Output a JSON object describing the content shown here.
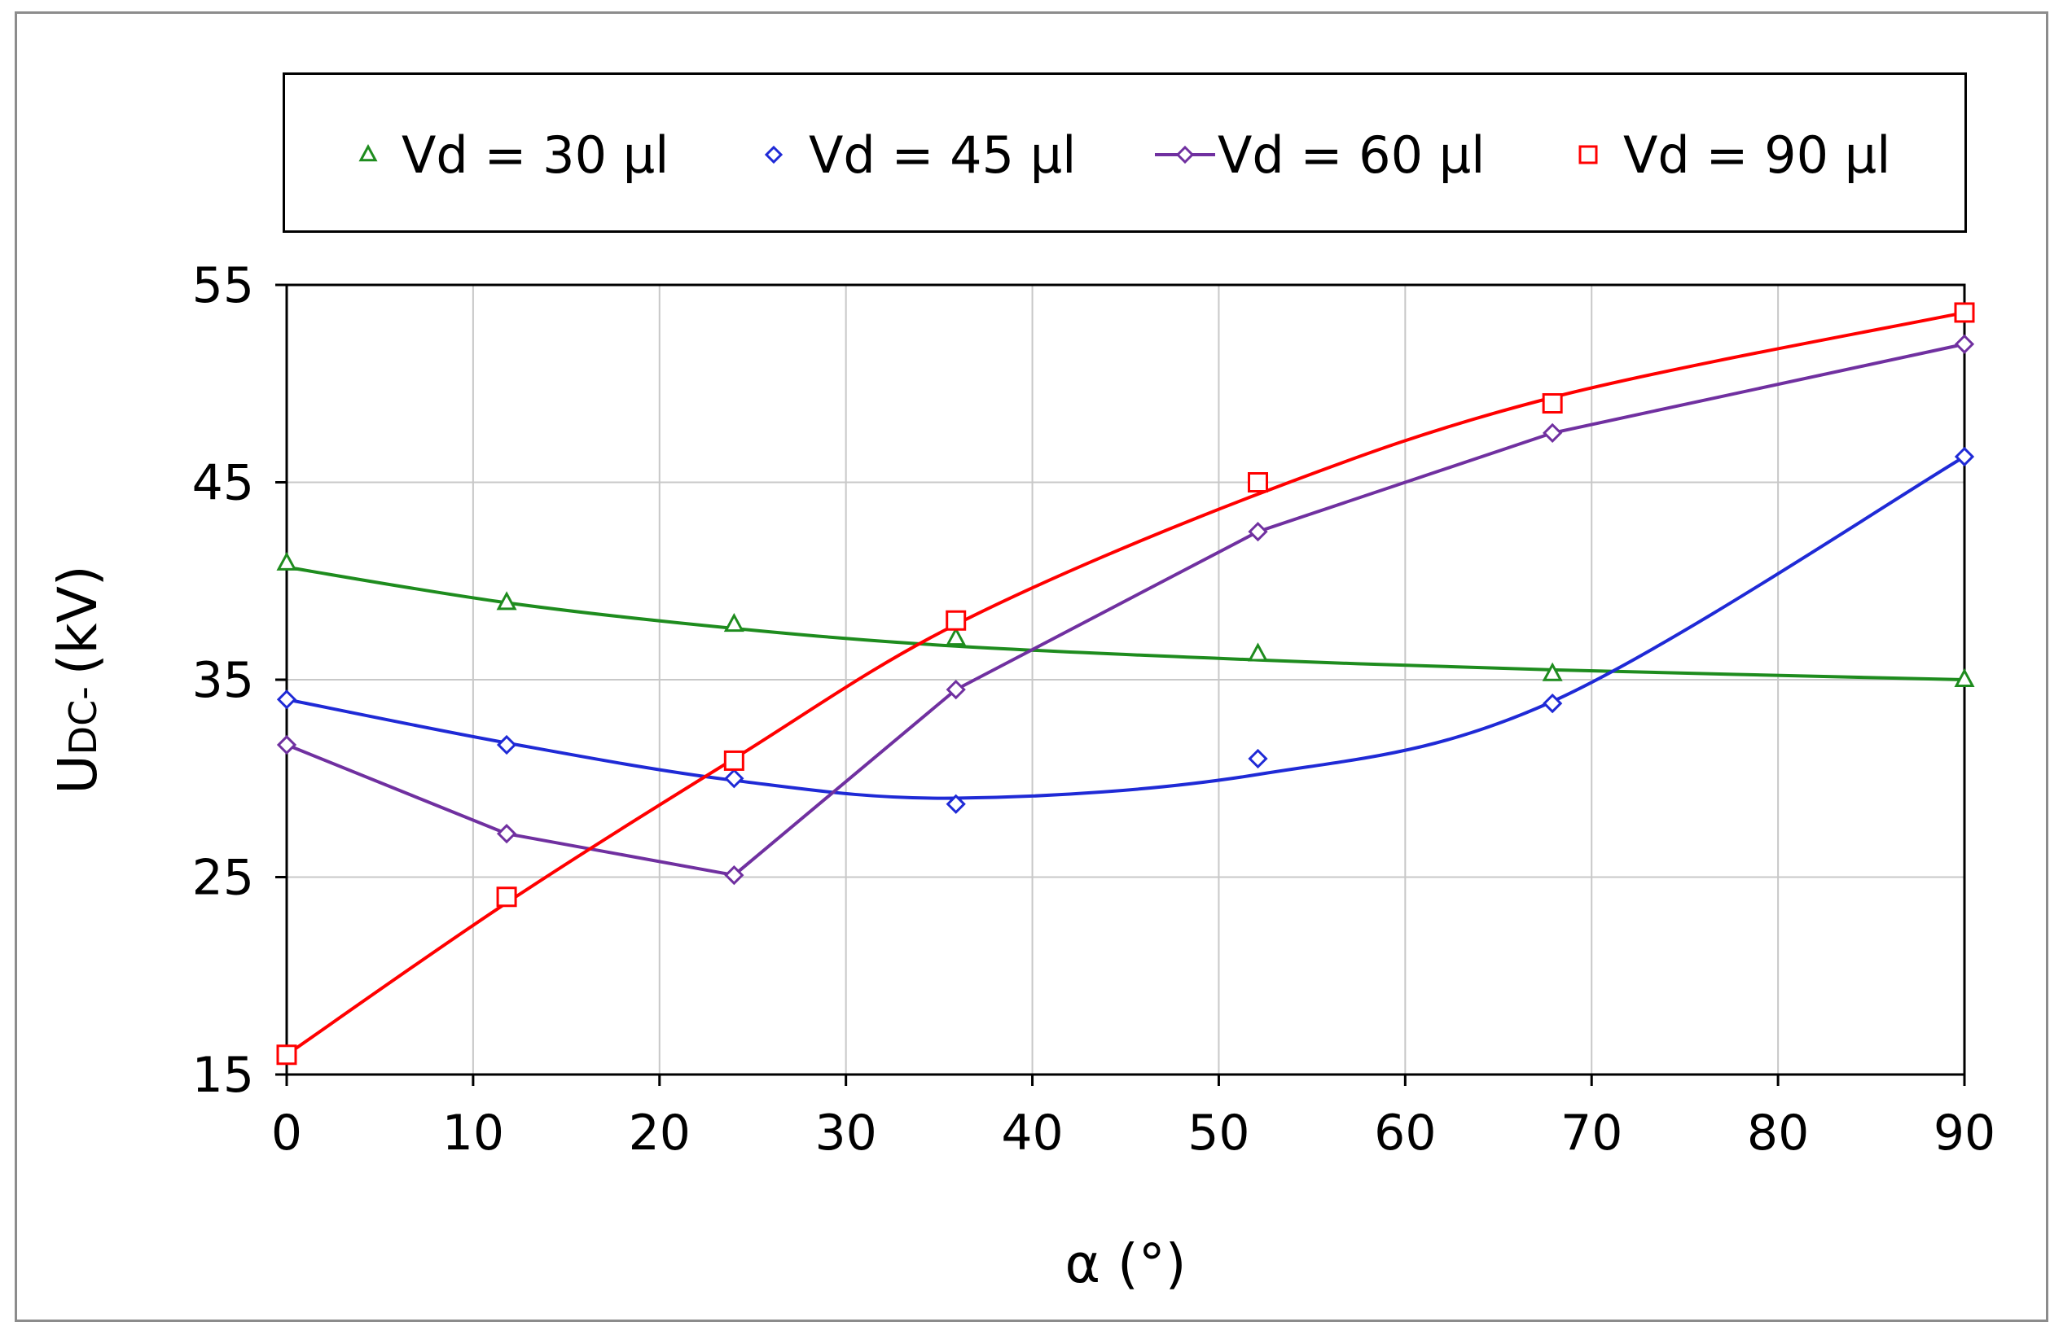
{
  "chart_data": {
    "type": "line",
    "title": "",
    "xlabel": "α (°)",
    "ylabel_main": "U",
    "ylabel_sub": "DC-",
    "ylabel_unit": "(kV)",
    "xlim": [
      0,
      90
    ],
    "ylim": [
      15,
      55
    ],
    "xticks": [
      0,
      10,
      20,
      30,
      40,
      50,
      60,
      70,
      80,
      90
    ],
    "yticks": [
      15,
      25,
      35,
      45,
      55
    ],
    "xtick_labels": [
      "0",
      "10",
      "20",
      "30",
      "40",
      "50",
      "60",
      "70",
      "80",
      "90"
    ],
    "ytick_labels": [
      "15",
      "25",
      "35",
      "45",
      "55"
    ],
    "grid": true,
    "legend_position": "top",
    "series": [
      {
        "name": "Vd = 30 µl",
        "marker": "triangle",
        "color": "#1e8c1e",
        "connect": "none",
        "x": [
          0,
          11.8,
          24,
          35.9,
          52.1,
          67.9,
          90
        ],
        "y": [
          40.9,
          38.9,
          37.8,
          37.1,
          36.3,
          35.3,
          35.0
        ],
        "trend_y": [
          40.7,
          38.9,
          37.6,
          36.7,
          36.0,
          35.5,
          35.0
        ]
      },
      {
        "name": "Vd = 45 µl",
        "marker": "diamond",
        "color": "#1f2ad6",
        "connect": "none",
        "x": [
          0,
          11.8,
          24,
          35.9,
          52.1,
          67.9,
          90
        ],
        "y": [
          34.0,
          31.7,
          30.0,
          28.7,
          31.0,
          33.8,
          46.3
        ],
        "trend_y": [
          34.0,
          31.8,
          29.9,
          29.0,
          30.2,
          33.9,
          46.3
        ]
      },
      {
        "name": "Vd = 60 µl",
        "marker": "diamond",
        "color": "#7030a0",
        "connect": "straight",
        "x": [
          0,
          11.8,
          24,
          35.9,
          52.1,
          67.9,
          90
        ],
        "y": [
          31.7,
          27.2,
          25.1,
          34.5,
          42.5,
          47.5,
          52.0
        ]
      },
      {
        "name": "Vd = 90 µl",
        "marker": "square",
        "color": "#ff0000",
        "connect": "none",
        "x": [
          0,
          11.8,
          24,
          35.9,
          52.1,
          67.9,
          90
        ],
        "y": [
          16.0,
          24.0,
          30.9,
          38.0,
          45.0,
          49.0,
          53.6
        ],
        "trend_y": [
          16.0,
          23.7,
          31.0,
          37.8,
          44.4,
          49.3,
          53.6
        ]
      }
    ]
  }
}
